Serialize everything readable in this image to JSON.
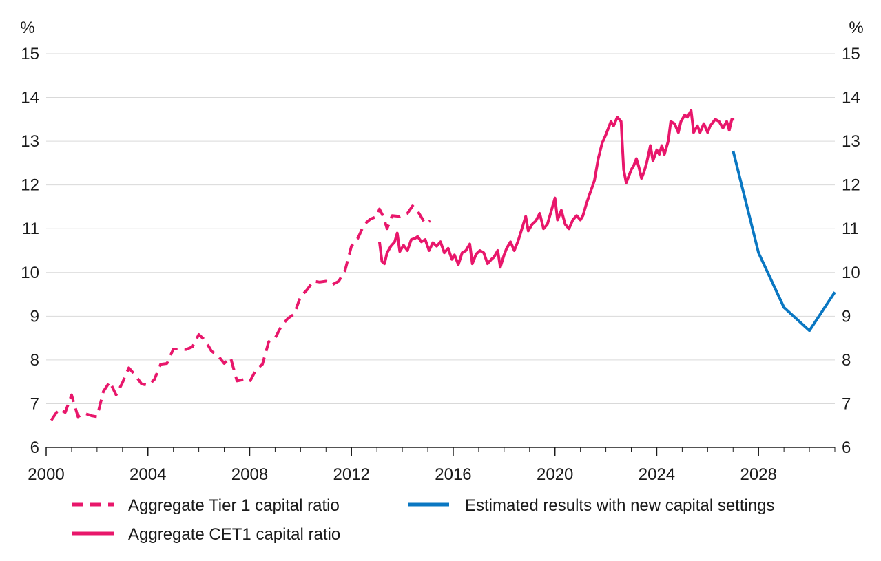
{
  "chart_data": {
    "type": "line",
    "left_unit": "%",
    "right_unit": "%",
    "xlim": [
      2000,
      2031
    ],
    "ylim": [
      6,
      15
    ],
    "y_ticks": [
      6,
      7,
      8,
      9,
      10,
      11,
      12,
      13,
      14,
      15
    ],
    "x_ticks": [
      2000,
      2004,
      2008,
      2012,
      2016,
      2020,
      2024,
      2028
    ],
    "grid": "horizontal",
    "legend_position": "bottom",
    "colors": {
      "pink": "#e8176b",
      "blue": "#0a77c2",
      "grid": "#d9d9d9",
      "axis": "#1a1a1a"
    },
    "series": [
      {
        "name": "Aggregate Tier 1 capital ratio",
        "style": "dashed",
        "color": "#e8176b",
        "points": [
          [
            2000.2,
            6.62
          ],
          [
            2000.5,
            6.88
          ],
          [
            2000.75,
            6.8
          ],
          [
            2001.0,
            7.2
          ],
          [
            2001.25,
            6.7
          ],
          [
            2001.5,
            6.78
          ],
          [
            2001.8,
            6.72
          ],
          [
            2002.0,
            6.7
          ],
          [
            2002.25,
            7.28
          ],
          [
            2002.5,
            7.5
          ],
          [
            2002.75,
            7.2
          ],
          [
            2003.0,
            7.48
          ],
          [
            2003.25,
            7.82
          ],
          [
            2003.5,
            7.65
          ],
          [
            2003.75,
            7.45
          ],
          [
            2004.0,
            7.42
          ],
          [
            2004.25,
            7.55
          ],
          [
            2004.5,
            7.9
          ],
          [
            2004.75,
            7.92
          ],
          [
            2005.0,
            8.25
          ],
          [
            2005.25,
            8.25
          ],
          [
            2005.5,
            8.24
          ],
          [
            2005.75,
            8.3
          ],
          [
            2006.0,
            8.58
          ],
          [
            2006.25,
            8.45
          ],
          [
            2006.5,
            8.2
          ],
          [
            2006.75,
            8.1
          ],
          [
            2007.0,
            7.92
          ],
          [
            2007.25,
            8.05
          ],
          [
            2007.5,
            7.52
          ],
          [
            2007.75,
            7.55
          ],
          [
            2008.0,
            7.5
          ],
          [
            2008.25,
            7.78
          ],
          [
            2008.5,
            7.9
          ],
          [
            2008.75,
            8.42
          ],
          [
            2009.0,
            8.5
          ],
          [
            2009.25,
            8.78
          ],
          [
            2009.5,
            8.95
          ],
          [
            2009.75,
            9.05
          ],
          [
            2010.0,
            9.45
          ],
          [
            2010.25,
            9.6
          ],
          [
            2010.5,
            9.8
          ],
          [
            2010.75,
            9.78
          ],
          [
            2011.0,
            9.8
          ],
          [
            2011.25,
            9.72
          ],
          [
            2011.5,
            9.8
          ],
          [
            2011.75,
            10.05
          ],
          [
            2012.0,
            10.6
          ],
          [
            2012.25,
            10.78
          ],
          [
            2012.5,
            11.1
          ],
          [
            2012.75,
            11.22
          ],
          [
            2013.0,
            11.28
          ],
          [
            2013.1,
            11.45
          ],
          [
            2013.25,
            11.28
          ],
          [
            2013.4,
            11.0
          ],
          [
            2013.6,
            11.3
          ],
          [
            2013.9,
            11.28
          ],
          [
            2014.2,
            11.35
          ],
          [
            2014.4,
            11.52
          ],
          [
            2014.6,
            11.4
          ],
          [
            2014.9,
            11.12
          ],
          [
            2015.1,
            11.18
          ]
        ]
      },
      {
        "name": "Aggregate CET1 capital ratio",
        "style": "solid",
        "color": "#e8176b",
        "points": [
          [
            2013.1,
            10.7
          ],
          [
            2013.2,
            10.25
          ],
          [
            2013.3,
            10.2
          ],
          [
            2013.4,
            10.45
          ],
          [
            2013.55,
            10.6
          ],
          [
            2013.7,
            10.7
          ],
          [
            2013.8,
            10.9
          ],
          [
            2013.9,
            10.48
          ],
          [
            2014.05,
            10.62
          ],
          [
            2014.2,
            10.5
          ],
          [
            2014.35,
            10.75
          ],
          [
            2014.5,
            10.78
          ],
          [
            2014.6,
            10.82
          ],
          [
            2014.75,
            10.7
          ],
          [
            2014.9,
            10.75
          ],
          [
            2015.05,
            10.5
          ],
          [
            2015.2,
            10.68
          ],
          [
            2015.35,
            10.6
          ],
          [
            2015.5,
            10.7
          ],
          [
            2015.65,
            10.45
          ],
          [
            2015.8,
            10.55
          ],
          [
            2015.95,
            10.3
          ],
          [
            2016.05,
            10.4
          ],
          [
            2016.2,
            10.18
          ],
          [
            2016.35,
            10.45
          ],
          [
            2016.5,
            10.5
          ],
          [
            2016.65,
            10.65
          ],
          [
            2016.75,
            10.2
          ],
          [
            2016.9,
            10.42
          ],
          [
            2017.05,
            10.5
          ],
          [
            2017.2,
            10.45
          ],
          [
            2017.35,
            10.2
          ],
          [
            2017.5,
            10.3
          ],
          [
            2017.6,
            10.35
          ],
          [
            2017.75,
            10.5
          ],
          [
            2017.85,
            10.12
          ],
          [
            2018.0,
            10.4
          ],
          [
            2018.1,
            10.55
          ],
          [
            2018.25,
            10.7
          ],
          [
            2018.4,
            10.5
          ],
          [
            2018.55,
            10.72
          ],
          [
            2018.7,
            11.0
          ],
          [
            2018.85,
            11.28
          ],
          [
            2018.95,
            10.95
          ],
          [
            2019.1,
            11.1
          ],
          [
            2019.25,
            11.18
          ],
          [
            2019.4,
            11.35
          ],
          [
            2019.55,
            11.0
          ],
          [
            2019.7,
            11.1
          ],
          [
            2019.85,
            11.4
          ],
          [
            2020.0,
            11.7
          ],
          [
            2020.1,
            11.2
          ],
          [
            2020.25,
            11.42
          ],
          [
            2020.4,
            11.1
          ],
          [
            2020.55,
            11.0
          ],
          [
            2020.7,
            11.2
          ],
          [
            2020.85,
            11.3
          ],
          [
            2021.0,
            11.2
          ],
          [
            2021.1,
            11.3
          ],
          [
            2021.25,
            11.6
          ],
          [
            2021.4,
            11.85
          ],
          [
            2021.55,
            12.1
          ],
          [
            2021.7,
            12.6
          ],
          [
            2021.85,
            12.95
          ],
          [
            2022.0,
            13.15
          ],
          [
            2022.1,
            13.3
          ],
          [
            2022.2,
            13.45
          ],
          [
            2022.3,
            13.35
          ],
          [
            2022.45,
            13.55
          ],
          [
            2022.6,
            13.45
          ],
          [
            2022.7,
            12.35
          ],
          [
            2022.8,
            12.05
          ],
          [
            2022.9,
            12.2
          ],
          [
            2023.0,
            12.35
          ],
          [
            2023.1,
            12.45
          ],
          [
            2023.2,
            12.6
          ],
          [
            2023.3,
            12.4
          ],
          [
            2023.4,
            12.15
          ],
          [
            2023.5,
            12.3
          ],
          [
            2023.6,
            12.5
          ],
          [
            2023.75,
            12.9
          ],
          [
            2023.85,
            12.55
          ],
          [
            2024.0,
            12.8
          ],
          [
            2024.1,
            12.7
          ],
          [
            2024.2,
            12.9
          ],
          [
            2024.3,
            12.7
          ],
          [
            2024.45,
            13.0
          ],
          [
            2024.55,
            13.45
          ],
          [
            2024.7,
            13.4
          ],
          [
            2024.85,
            13.2
          ],
          [
            2024.95,
            13.45
          ],
          [
            2025.1,
            13.6
          ],
          [
            2025.2,
            13.55
          ],
          [
            2025.35,
            13.7
          ],
          [
            2025.45,
            13.2
          ],
          [
            2025.6,
            13.35
          ],
          [
            2025.7,
            13.2
          ],
          [
            2025.85,
            13.4
          ],
          [
            2026.0,
            13.2
          ],
          [
            2026.1,
            13.35
          ],
          [
            2026.3,
            13.5
          ],
          [
            2026.45,
            13.45
          ],
          [
            2026.6,
            13.3
          ],
          [
            2026.75,
            13.45
          ],
          [
            2026.85,
            13.25
          ],
          [
            2026.95,
            13.5
          ],
          [
            2027.05,
            13.5
          ]
        ]
      },
      {
        "name": "Estimated results with new capital settings",
        "style": "solid",
        "color": "#0a77c2",
        "points": [
          [
            2027.0,
            12.78
          ],
          [
            2028.0,
            10.45
          ],
          [
            2029.0,
            9.2
          ],
          [
            2030.0,
            8.67
          ],
          [
            2031.0,
            9.55
          ]
        ]
      }
    ]
  }
}
